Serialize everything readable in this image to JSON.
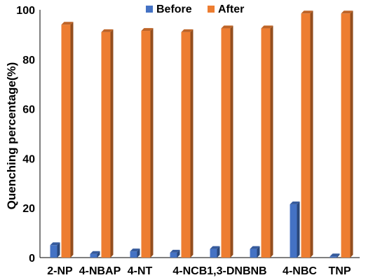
{
  "chart_data": {
    "type": "bar",
    "ylabel": "Quenching percentage(%)",
    "xlabel": "",
    "ylim": [
      0,
      100
    ],
    "yticks": [
      0,
      20,
      40,
      60,
      80,
      100
    ],
    "categories": [
      "2-NP",
      "4-NBAP",
      "4-NT",
      "4-NCB",
      "1,3-DNB",
      "NB",
      "4-NBC",
      "TNP"
    ],
    "category_labels_printed": [
      "2-NP",
      "4-NBAP",
      "4-NT",
      "4-NCB1,3-DNBNB",
      "4-NBC",
      "TNP"
    ],
    "series": [
      {
        "name": "Before",
        "color": "#4472C4",
        "values": [
          5,
          1.5,
          2.5,
          2,
          3.5,
          3.5,
          21.5,
          0.5
        ]
      },
      {
        "name": "After",
        "color": "#ED7D31",
        "values": [
          94,
          91,
          91.5,
          91,
          92.5,
          92.5,
          98.5,
          98.5
        ]
      }
    ],
    "legend_position": "top-right",
    "grid": false,
    "style": "3d-bars"
  }
}
